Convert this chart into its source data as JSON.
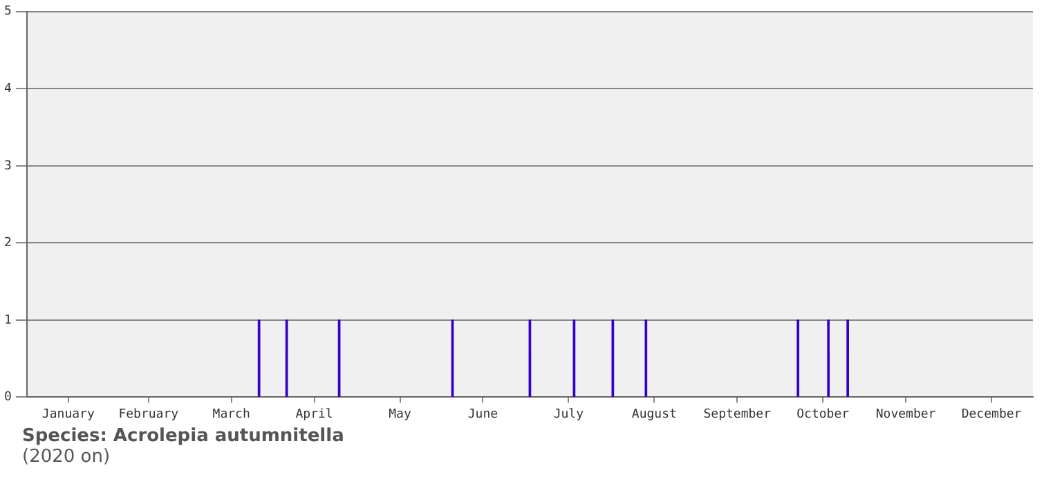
{
  "chart_data": {
    "type": "bar",
    "x": [
      "--03-26",
      "--04-05",
      "--04-24",
      "--06-04",
      "--07-02",
      "--07-18",
      "--08-01",
      "--08-13",
      "--10-07",
      "--10-18",
      "--10-25"
    ],
    "values": [
      1,
      1,
      1,
      1,
      1,
      1,
      1,
      1,
      1,
      1,
      1
    ],
    "color": "#3300cc",
    "xlim": [
      "--01-01",
      "--12-31"
    ],
    "xticks": [
      {
        "value": "--01-16",
        "label": "January"
      },
      {
        "value": "--02-14",
        "label": "February"
      },
      {
        "value": "--03-16",
        "label": "March"
      },
      {
        "value": "--04-15",
        "label": "April"
      },
      {
        "value": "--05-16",
        "label": "May"
      },
      {
        "value": "--06-15",
        "label": "June"
      },
      {
        "value": "--07-16",
        "label": "July"
      },
      {
        "value": "--08-16",
        "label": "August"
      },
      {
        "value": "--09-15",
        "label": "September"
      },
      {
        "value": "--10-16",
        "label": "October"
      },
      {
        "value": "--11-15",
        "label": "November"
      },
      {
        "value": "--12-16",
        "label": "December"
      }
    ],
    "ylim": [
      0,
      5
    ],
    "yticks": [
      0,
      1,
      2,
      3,
      4,
      5
    ],
    "grid": "y",
    "legend": false,
    "annotations": [
      "Species: Acrolepia autumnitella",
      "(2020 on)"
    ]
  }
}
